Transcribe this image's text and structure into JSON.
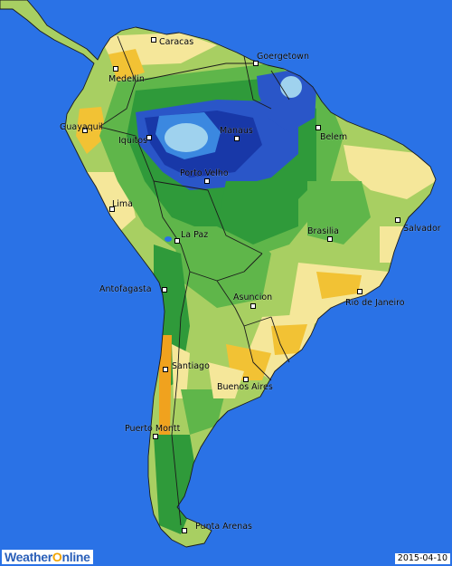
{
  "map": {
    "date": "2015-04-10",
    "brand": {
      "part1": "Weather",
      "part2": "O",
      "part3": "nline"
    },
    "cities": [
      {
        "name": "Caracas"
      },
      {
        "name": "Goergetown"
      },
      {
        "name": "Medellin"
      },
      {
        "name": "Guayaquil"
      },
      {
        "name": "Iquitos"
      },
      {
        "name": "Manaus"
      },
      {
        "name": "Belem"
      },
      {
        "name": "Porto Velho"
      },
      {
        "name": "Lima"
      },
      {
        "name": "La Paz"
      },
      {
        "name": "Brasilia"
      },
      {
        "name": "Salvador"
      },
      {
        "name": "Antofagasta"
      },
      {
        "name": "Asuncion"
      },
      {
        "name": "Rio de Janeiro"
      },
      {
        "name": "Santiago"
      },
      {
        "name": "Buenos Aires"
      },
      {
        "name": "Puerto Montt"
      },
      {
        "name": "Punta Arenas"
      }
    ],
    "colors": {
      "ocean": "#2a72e6",
      "very_wet": "#9fd2ee",
      "wet_blue": "#2a56c8",
      "dark_blue": "#1838a8",
      "dark_green": "#2f9a3a",
      "green": "#5fb64a",
      "light_green": "#a8cf62",
      "cream": "#f5e79a",
      "yellow": "#f2c234",
      "orange": "#f0a21e"
    }
  }
}
